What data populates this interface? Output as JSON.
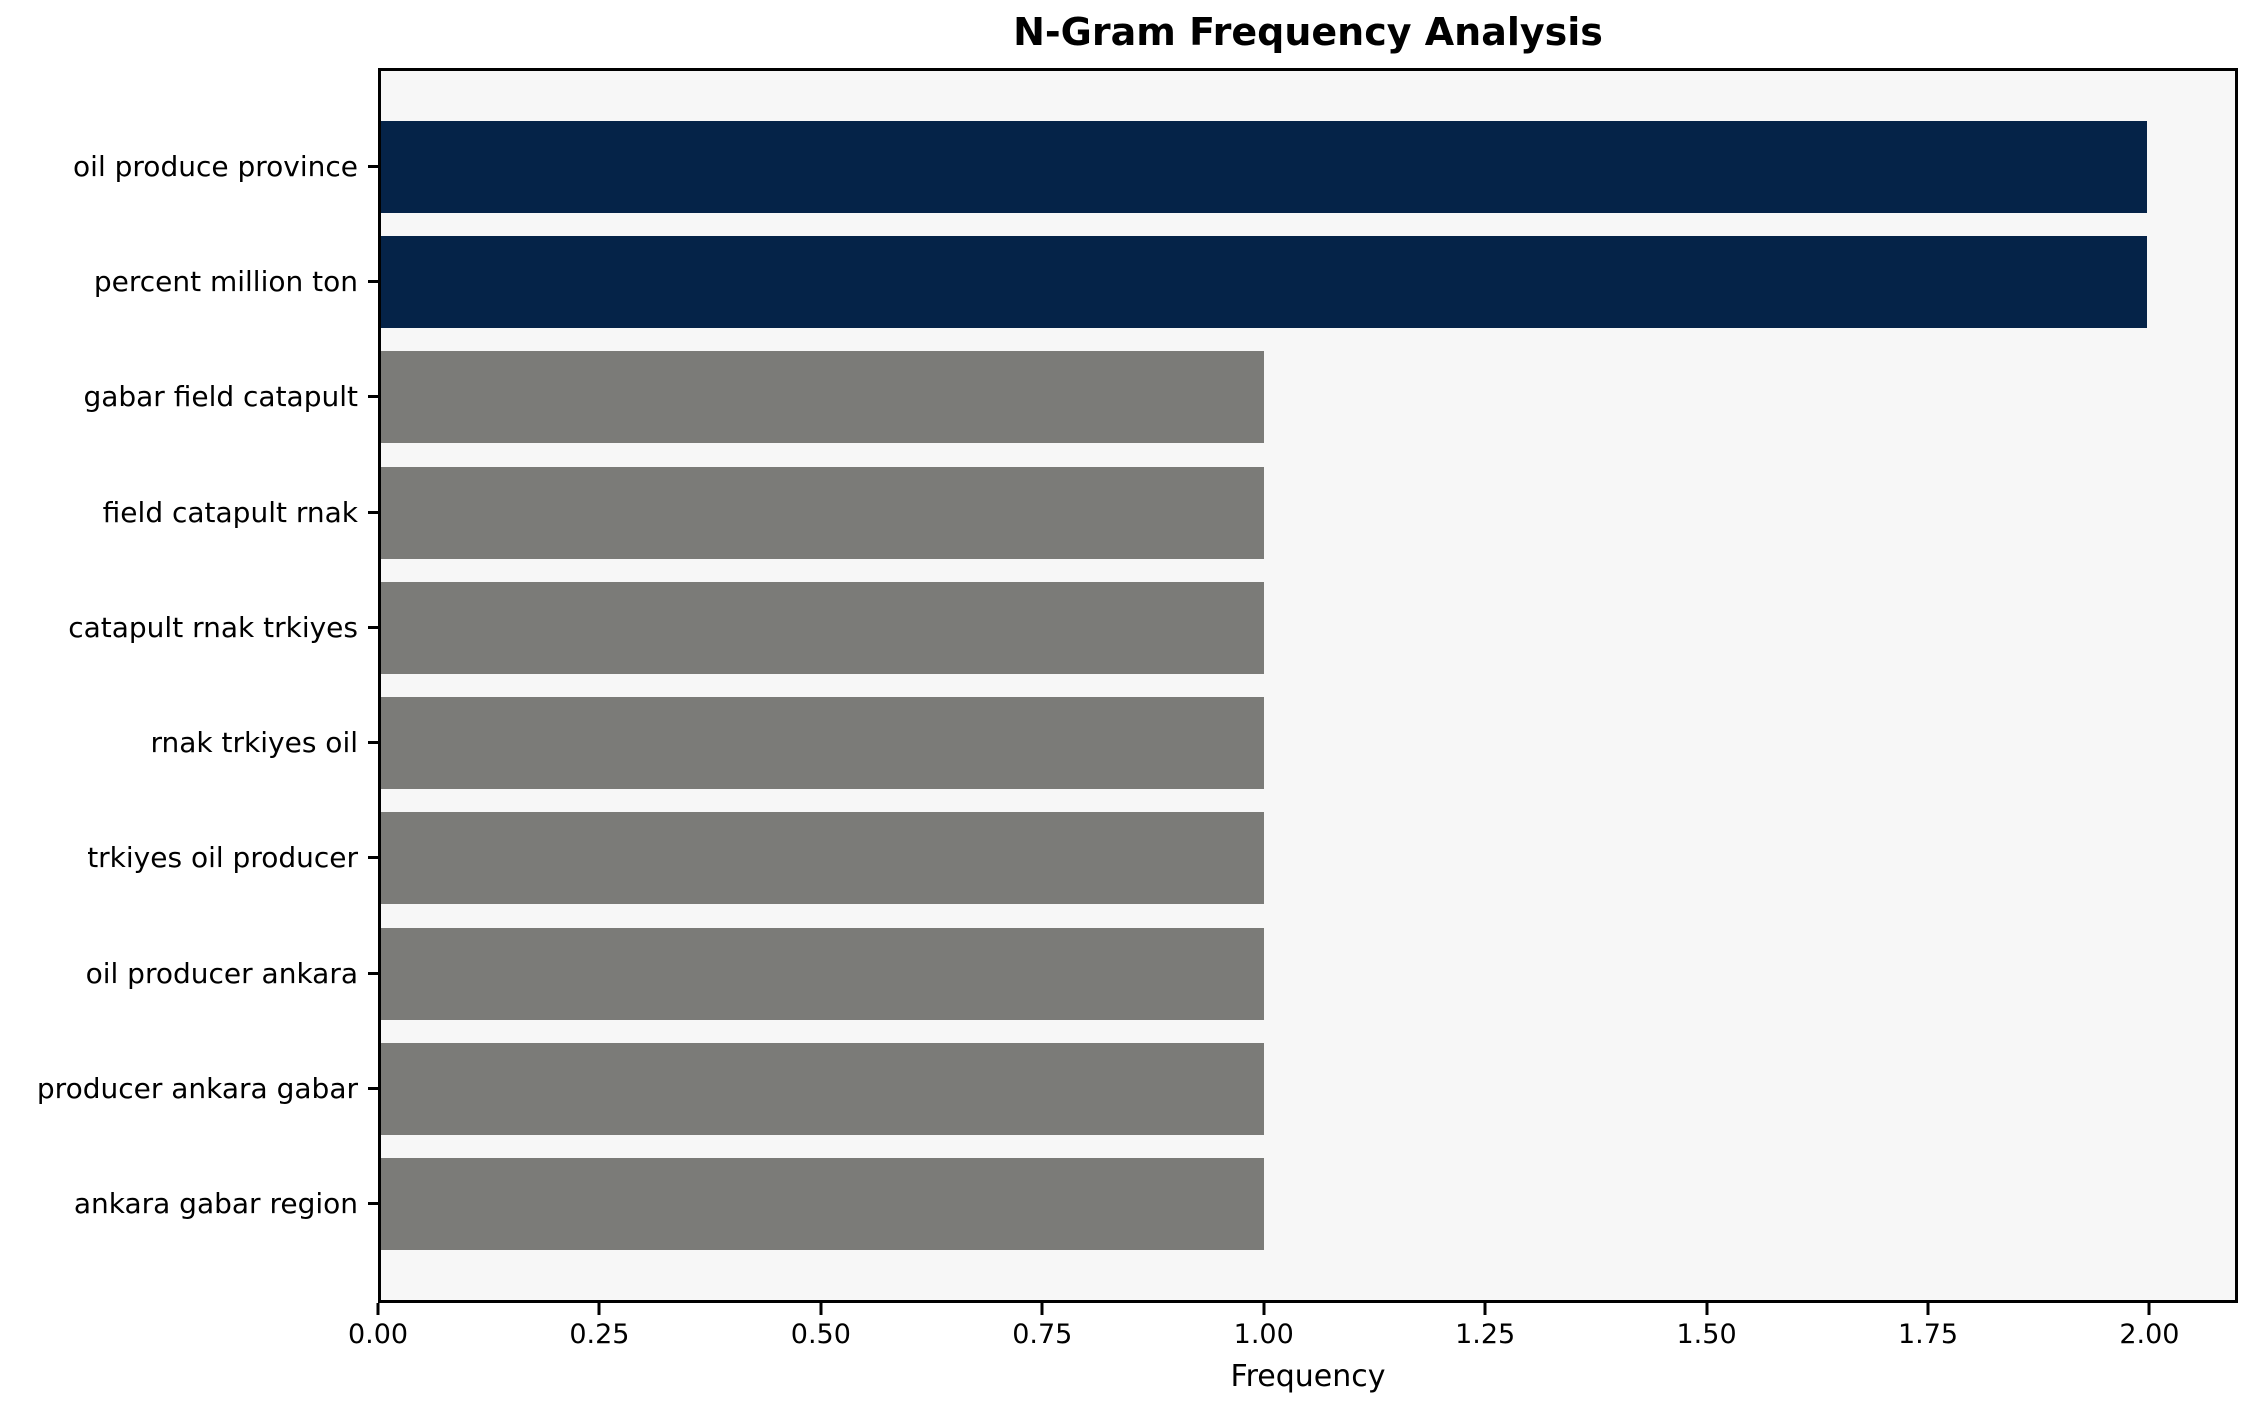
{
  "chart_data": {
    "type": "bar",
    "orientation": "horizontal",
    "title": "N-Gram Frequency Analysis",
    "xlabel": "Frequency",
    "ylabel": "",
    "categories": [
      "oil produce province",
      "percent million ton",
      "gabar field catapult",
      "field catapult rnak",
      "catapult rnak trkiyes",
      "rnak trkiyes oil",
      "trkiyes oil producer",
      "oil producer ankara",
      "producer ankara gabar",
      "ankara gabar region"
    ],
    "values": [
      2,
      2,
      1,
      1,
      1,
      1,
      1,
      1,
      1,
      1
    ],
    "colors": [
      "#052348",
      "#052348",
      "#7b7b78",
      "#7b7b78",
      "#7b7b78",
      "#7b7b78",
      "#7b7b78",
      "#7b7b78",
      "#7b7b78",
      "#7b7b78"
    ],
    "bar_color_meaning": {
      "highlight": "#052348",
      "default": "#7b7b78"
    },
    "xticks": [
      "0.00",
      "0.25",
      "0.50",
      "0.75",
      "1.00",
      "1.25",
      "1.50",
      "1.75",
      "2.00"
    ],
    "xtick_values": [
      0,
      0.25,
      0.5,
      0.75,
      1.0,
      1.25,
      1.5,
      1.75,
      2.0
    ],
    "xlim": [
      0,
      2.1
    ],
    "grid": false,
    "legend": false,
    "plot_background": "#f7f7f7",
    "figure_background": "#ffffff",
    "spine_color": "#000000",
    "text_color": "#000000"
  }
}
